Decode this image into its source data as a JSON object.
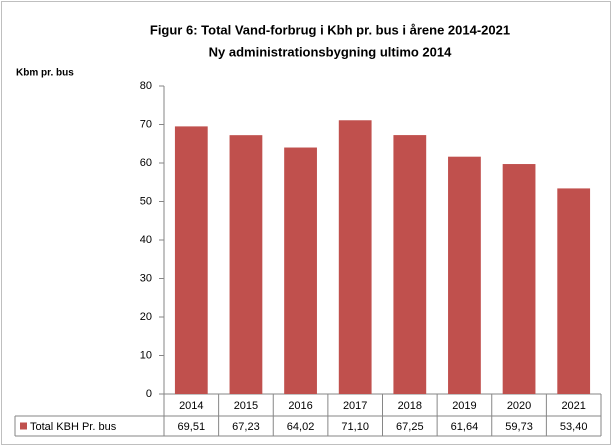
{
  "chart_data": {
    "type": "bar",
    "title": "Figur 6: Total Vand-forbrug i Kbh pr. bus i årene 2014-2021",
    "subtitle": "Ny administrationsbygning ultimo 2014",
    "y_label": "Kbm pr. bus",
    "categories": [
      "2014",
      "2015",
      "2016",
      "2017",
      "2018",
      "2019",
      "2020",
      "2021"
    ],
    "series": [
      {
        "name": "Total KBH Pr. bus",
        "color": "#c0504d",
        "values": [
          69.51,
          67.23,
          64.02,
          71.1,
          67.25,
          61.64,
          59.73,
          53.4
        ],
        "value_labels": [
          "69,51",
          "67,23",
          "64,02",
          "71,10",
          "67,25",
          "61,64",
          "59,73",
          "53,40"
        ]
      }
    ],
    "ylim": [
      0,
      80
    ],
    "yticks": [
      0,
      10,
      20,
      30,
      40,
      50,
      60,
      70,
      80
    ],
    "grid": false
  }
}
